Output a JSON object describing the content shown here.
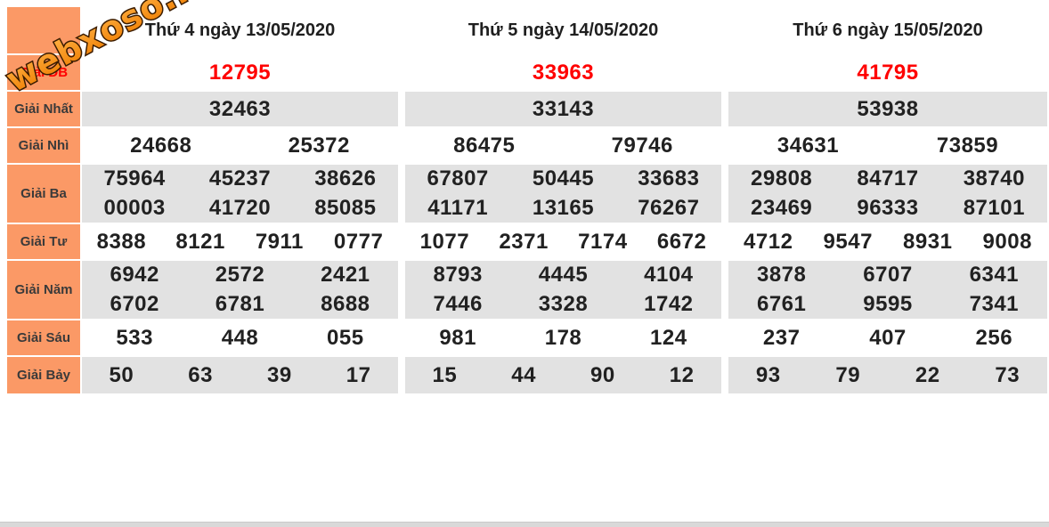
{
  "watermark": {
    "text": "webxoso.net"
  },
  "colors": {
    "accent_orange": "#FB9966",
    "row_grey": "#E2E2E2",
    "highlight_red": "#FF0000",
    "number_black": "#212121"
  },
  "table": {
    "headers": [
      "Thứ 4 ngày 13/05/2020",
      "Thứ 5 ngày 14/05/2020",
      "Thứ 6 ngày 15/05/2020"
    ],
    "rows": [
      {
        "label": "Giải ĐB",
        "red": true,
        "cols": [
          [
            [
              "12795"
            ]
          ],
          [
            [
              "33963"
            ]
          ],
          [
            [
              "41795"
            ]
          ]
        ]
      },
      {
        "label": "Giải Nhất",
        "cols": [
          [
            [
              "32463"
            ]
          ],
          [
            [
              "33143"
            ]
          ],
          [
            [
              "53938"
            ]
          ]
        ]
      },
      {
        "label": "Giải Nhì",
        "cols": [
          [
            [
              "24668",
              "25372"
            ]
          ],
          [
            [
              "86475",
              "79746"
            ]
          ],
          [
            [
              "34631",
              "73859"
            ]
          ]
        ]
      },
      {
        "label": "Giải Ba",
        "cols": [
          [
            [
              "75964",
              "45237",
              "38626"
            ],
            [
              "00003",
              "41720",
              "85085"
            ]
          ],
          [
            [
              "67807",
              "50445",
              "33683"
            ],
            [
              "41171",
              "13165",
              "76267"
            ]
          ],
          [
            [
              "29808",
              "84717",
              "38740"
            ],
            [
              "23469",
              "96333",
              "87101"
            ]
          ]
        ]
      },
      {
        "label": "Giải Tư",
        "cols": [
          [
            [
              "8388",
              "8121",
              "7911",
              "0777"
            ]
          ],
          [
            [
              "1077",
              "2371",
              "7174",
              "6672"
            ]
          ],
          [
            [
              "4712",
              "9547",
              "8931",
              "9008"
            ]
          ]
        ]
      },
      {
        "label": "Giải Năm",
        "cols": [
          [
            [
              "6942",
              "2572",
              "2421"
            ],
            [
              "6702",
              "6781",
              "8688"
            ]
          ],
          [
            [
              "8793",
              "4445",
              "4104"
            ],
            [
              "7446",
              "3328",
              "1742"
            ]
          ],
          [
            [
              "3878",
              "6707",
              "6341"
            ],
            [
              "6761",
              "9595",
              "7341"
            ]
          ]
        ]
      },
      {
        "label": "Giải Sáu",
        "cols": [
          [
            [
              "533",
              "448",
              "055"
            ]
          ],
          [
            [
              "981",
              "178",
              "124"
            ]
          ],
          [
            [
              "237",
              "407",
              "256"
            ]
          ]
        ]
      },
      {
        "label": "Giải Bảy",
        "cols": [
          [
            [
              "50",
              "63",
              "39",
              "17"
            ]
          ],
          [
            [
              "15",
              "44",
              "90",
              "12"
            ]
          ],
          [
            [
              "93",
              "79",
              "22",
              "73"
            ]
          ]
        ]
      }
    ]
  }
}
